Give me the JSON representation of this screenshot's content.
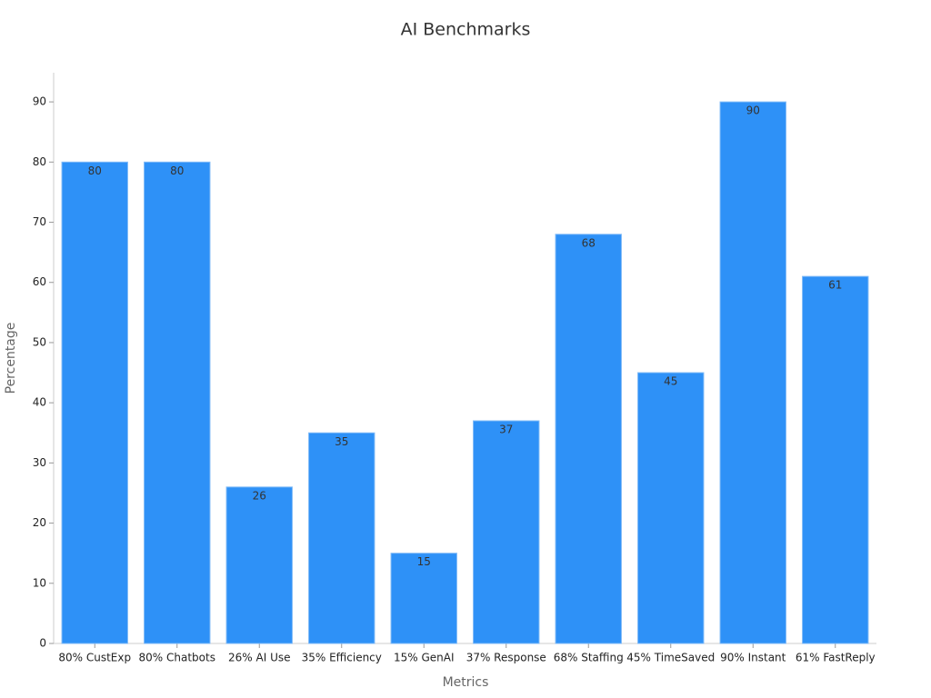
{
  "chart_data": {
    "type": "bar",
    "title": "AI Benchmarks",
    "x_label": "Metrics",
    "y_label": "Percentage",
    "categories": [
      "80% CustExp",
      "80% Chatbots",
      "26% AI Use",
      "35% Efficiency",
      "15% GenAI",
      "37% Response",
      "68% Staffing",
      "45% TimeSaved",
      "90% Instant",
      "61% FastReply"
    ],
    "values": [
      80,
      80,
      26,
      35,
      15,
      37,
      68,
      45,
      90,
      61
    ],
    "color": "#2e91f7",
    "ylim": [
      0,
      95
    ],
    "yticks": [
      0,
      10,
      20,
      30,
      40,
      50,
      60,
      70,
      80,
      90
    ],
    "grid": false
  }
}
